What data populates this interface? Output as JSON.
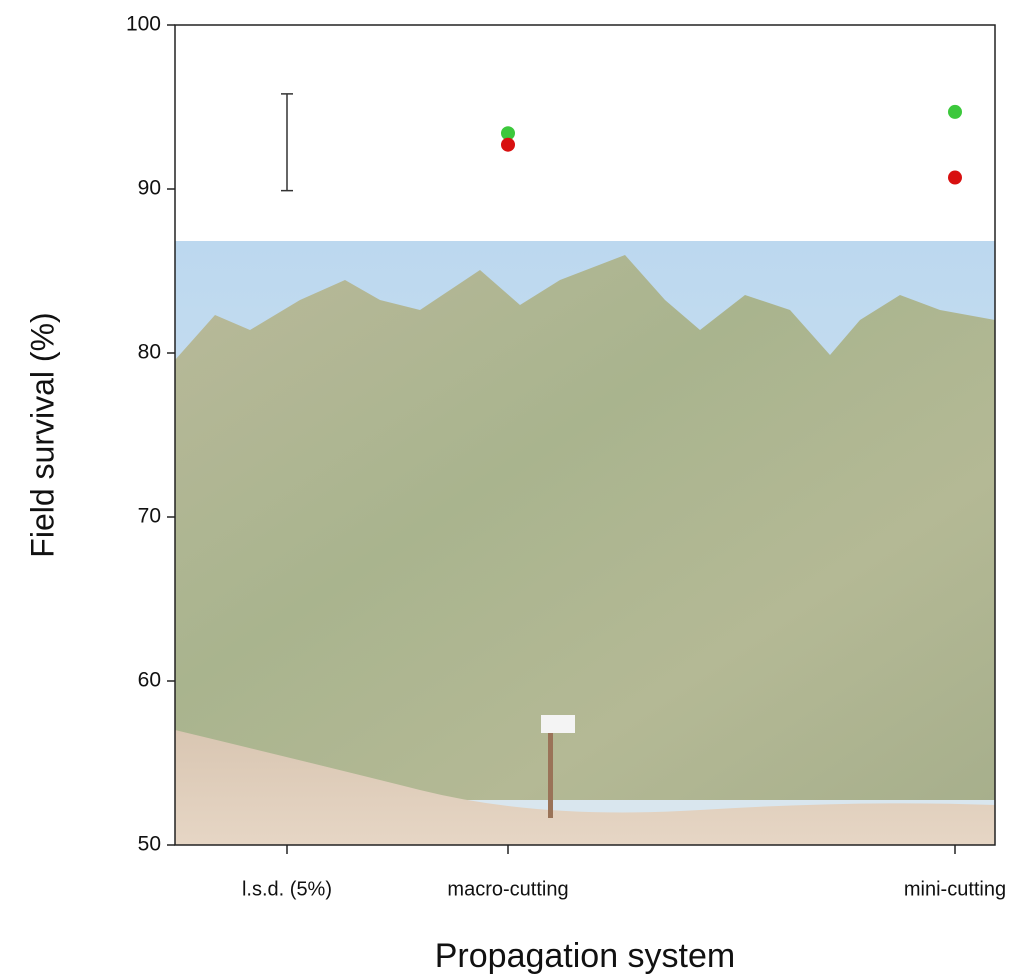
{
  "chart_data": {
    "type": "dot",
    "x_label": "Propagation system",
    "y_label": "Field survival (%)",
    "categories": [
      "l.s.d. (5%)",
      "macro-cutting",
      "mini-cutting"
    ],
    "series": [
      {
        "color": "#3cc83c",
        "values": [
          null,
          93.4,
          94.7
        ]
      },
      {
        "color": "#d81010",
        "values": [
          null,
          92.7,
          90.7
        ]
      }
    ],
    "lsd_bar": [
      89.9,
      95.8
    ],
    "ylim": [
      50,
      100
    ],
    "yticks": [
      50,
      60,
      70,
      80,
      90,
      100
    ]
  }
}
